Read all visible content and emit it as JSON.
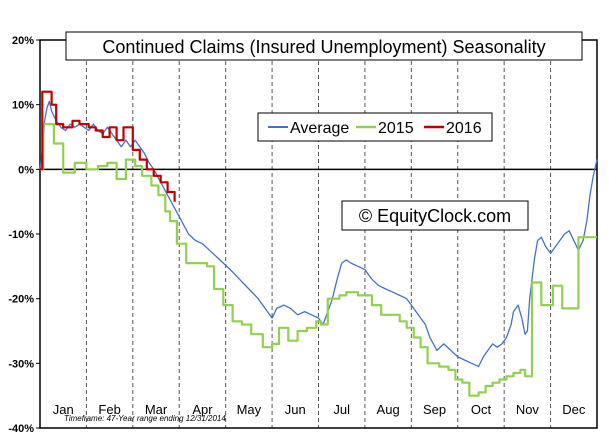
{
  "chart_data": {
    "type": "line",
    "title": "Continued Claims (Insured Unemployment) Seasonality",
    "watermark": "© EquityClock.com",
    "footnote": "Timeframe: 47-Year range ending 12/31/2014",
    "xlabel": "",
    "ylabel": "",
    "x_unit": "month",
    "xlim": [
      0,
      12
    ],
    "ylim": [
      -40,
      20
    ],
    "y_ticks": [
      20,
      10,
      0,
      -10,
      -20,
      -30,
      -40
    ],
    "y_tick_labels": [
      "20%",
      "10%",
      "0%",
      "-10%",
      "-20%",
      "-30%",
      "-40%"
    ],
    "categories": [
      "Jan",
      "Feb",
      "Mar",
      "Apr",
      "May",
      "Jun",
      "Jul",
      "Aug",
      "Sep",
      "Oct",
      "Nov",
      "Dec"
    ],
    "grid": {
      "vertical": true,
      "horizontal": false,
      "vertical_style": "dashed"
    },
    "legend": {
      "position": "top-center",
      "frame": true
    },
    "series": [
      {
        "name": "Average",
        "color": "#4472c4",
        "step": false,
        "points": [
          [
            0.0,
            0.0
          ],
          [
            0.05,
            3.0
          ],
          [
            0.1,
            7.5
          ],
          [
            0.15,
            9.5
          ],
          [
            0.2,
            10.5
          ],
          [
            0.25,
            9.0
          ],
          [
            0.35,
            7.5
          ],
          [
            0.45,
            6.5
          ],
          [
            0.55,
            6.0
          ],
          [
            0.65,
            7.0
          ],
          [
            0.75,
            6.5
          ],
          [
            0.85,
            7.0
          ],
          [
            0.95,
            6.5
          ],
          [
            1.05,
            6.0
          ],
          [
            1.15,
            7.0
          ],
          [
            1.25,
            6.0
          ],
          [
            1.35,
            5.5
          ],
          [
            1.45,
            6.5
          ],
          [
            1.55,
            5.5
          ],
          [
            1.65,
            4.5
          ],
          [
            1.75,
            3.5
          ],
          [
            1.85,
            4.5
          ],
          [
            1.95,
            3.5
          ],
          [
            2.05,
            4.5
          ],
          [
            2.15,
            3.5
          ],
          [
            2.25,
            2.5
          ],
          [
            2.35,
            1.0
          ],
          [
            2.45,
            0.0
          ],
          [
            2.6,
            -2.0
          ],
          [
            2.75,
            -4.0
          ],
          [
            2.9,
            -6.0
          ],
          [
            3.05,
            -8.0
          ],
          [
            3.2,
            -10.0
          ],
          [
            3.35,
            -11.0
          ],
          [
            3.5,
            -11.5
          ],
          [
            3.65,
            -12.5
          ],
          [
            3.8,
            -13.5
          ],
          [
            3.95,
            -14.5
          ],
          [
            4.1,
            -15.5
          ],
          [
            4.3,
            -17.0
          ],
          [
            4.5,
            -18.5
          ],
          [
            4.7,
            -20.0
          ],
          [
            4.85,
            -21.5
          ],
          [
            5.0,
            -23.0
          ],
          [
            5.1,
            -21.5
          ],
          [
            5.25,
            -21.0
          ],
          [
            5.4,
            -21.5
          ],
          [
            5.55,
            -22.5
          ],
          [
            5.7,
            -22.0
          ],
          [
            5.85,
            -22.5
          ],
          [
            6.0,
            -23.0
          ],
          [
            6.1,
            -24.0
          ],
          [
            6.2,
            -22.0
          ],
          [
            6.3,
            -20.0
          ],
          [
            6.4,
            -17.0
          ],
          [
            6.5,
            -14.5
          ],
          [
            6.6,
            -14.0
          ],
          [
            6.7,
            -14.5
          ],
          [
            6.85,
            -15.0
          ],
          [
            7.0,
            -15.5
          ],
          [
            7.15,
            -17.0
          ],
          [
            7.3,
            -18.0
          ],
          [
            7.45,
            -18.5
          ],
          [
            7.6,
            -19.0
          ],
          [
            7.75,
            -19.5
          ],
          [
            7.9,
            -20.0
          ],
          [
            8.0,
            -21.0
          ],
          [
            8.15,
            -22.5
          ],
          [
            8.3,
            -24.0
          ],
          [
            8.4,
            -26.0
          ],
          [
            8.55,
            -28.0
          ],
          [
            8.7,
            -27.0
          ],
          [
            8.85,
            -28.0
          ],
          [
            9.0,
            -29.0
          ],
          [
            9.15,
            -29.5
          ],
          [
            9.3,
            -30.0
          ],
          [
            9.45,
            -30.5
          ],
          [
            9.55,
            -29.0
          ],
          [
            9.65,
            -28.0
          ],
          [
            9.75,
            -27.0
          ],
          [
            9.85,
            -27.5
          ],
          [
            9.95,
            -27.0
          ],
          [
            10.05,
            -26.0
          ],
          [
            10.15,
            -24.0
          ],
          [
            10.2,
            -22.0
          ],
          [
            10.3,
            -21.0
          ],
          [
            10.38,
            -23.0
          ],
          [
            10.45,
            -25.5
          ],
          [
            10.5,
            -25.0
          ],
          [
            10.55,
            -20.0
          ],
          [
            10.65,
            -14.0
          ],
          [
            10.72,
            -11.0
          ],
          [
            10.8,
            -10.5
          ],
          [
            10.9,
            -12.0
          ],
          [
            11.0,
            -13.0
          ],
          [
            11.1,
            -12.0
          ],
          [
            11.2,
            -11.0
          ],
          [
            11.3,
            -10.0
          ],
          [
            11.4,
            -9.5
          ],
          [
            11.5,
            -11.0
          ],
          [
            11.6,
            -12.5
          ],
          [
            11.7,
            -11.0
          ],
          [
            11.78,
            -8.0
          ],
          [
            11.85,
            -4.0
          ],
          [
            11.92,
            -1.0
          ],
          [
            12.0,
            1.5
          ]
        ]
      },
      {
        "name": "2015",
        "color": "#92d050",
        "step": true,
        "points": [
          [
            0.0,
            0.0
          ],
          [
            0.07,
            7.0
          ],
          [
            0.3,
            4.0
          ],
          [
            0.5,
            -0.5
          ],
          [
            0.65,
            -0.5
          ],
          [
            0.75,
            1.0
          ],
          [
            1.0,
            0.0
          ],
          [
            1.25,
            0.5
          ],
          [
            1.45,
            1.0
          ],
          [
            1.65,
            -1.5
          ],
          [
            1.85,
            1.5
          ],
          [
            2.05,
            0.5
          ],
          [
            2.2,
            -1.0
          ],
          [
            2.4,
            -2.5
          ],
          [
            2.55,
            -4.0
          ],
          [
            2.7,
            -6.5
          ],
          [
            2.8,
            -8.0
          ],
          [
            2.95,
            -11.5
          ],
          [
            3.15,
            -14.5
          ],
          [
            3.45,
            -14.5
          ],
          [
            3.6,
            -15.0
          ],
          [
            3.75,
            -18.5
          ],
          [
            3.95,
            -21.0
          ],
          [
            4.15,
            -23.5
          ],
          [
            4.35,
            -24.0
          ],
          [
            4.55,
            -25.5
          ],
          [
            4.8,
            -27.5
          ],
          [
            5.0,
            -27.0
          ],
          [
            5.15,
            -24.5
          ],
          [
            5.35,
            -26.5
          ],
          [
            5.55,
            -25.0
          ],
          [
            5.75,
            -24.5
          ],
          [
            5.95,
            -23.5
          ],
          [
            6.05,
            -24.0
          ],
          [
            6.2,
            -20.0
          ],
          [
            6.45,
            -19.5
          ],
          [
            6.6,
            -19.0
          ],
          [
            6.85,
            -19.5
          ],
          [
            7.0,
            -19.5
          ],
          [
            7.15,
            -21.0
          ],
          [
            7.35,
            -22.5
          ],
          [
            7.75,
            -23.5
          ],
          [
            7.9,
            -24.5
          ],
          [
            8.05,
            -26.0
          ],
          [
            8.2,
            -27.5
          ],
          [
            8.35,
            -30.0
          ],
          [
            8.6,
            -30.5
          ],
          [
            8.8,
            -31.0
          ],
          [
            8.95,
            -32.5
          ],
          [
            9.1,
            -33.0
          ],
          [
            9.25,
            -35.0
          ],
          [
            9.45,
            -34.5
          ],
          [
            9.6,
            -33.5
          ],
          [
            9.75,
            -33.0
          ],
          [
            9.9,
            -32.5
          ],
          [
            10.05,
            -32.0
          ],
          [
            10.2,
            -31.5
          ],
          [
            10.35,
            -31.0
          ],
          [
            10.45,
            -32.0
          ],
          [
            10.6,
            -17.5
          ],
          [
            10.8,
            -21.0
          ],
          [
            10.95,
            -21.0
          ],
          [
            11.05,
            -18.0
          ],
          [
            11.25,
            -21.5
          ],
          [
            11.45,
            -21.5
          ],
          [
            11.6,
            -10.5
          ],
          [
            12.0,
            -10.5
          ]
        ]
      },
      {
        "name": "2016",
        "color": "#c00000",
        "step": true,
        "points": [
          [
            0.0,
            0.0
          ],
          [
            0.05,
            12.0
          ],
          [
            0.25,
            10.0
          ],
          [
            0.35,
            7.0
          ],
          [
            0.5,
            6.5
          ],
          [
            0.7,
            7.5
          ],
          [
            0.85,
            7.0
          ],
          [
            1.05,
            6.5
          ],
          [
            1.2,
            6.0
          ],
          [
            1.35,
            5.0
          ],
          [
            1.5,
            6.5
          ],
          [
            1.65,
            4.5
          ],
          [
            1.8,
            6.5
          ],
          [
            2.0,
            3.0
          ],
          [
            2.15,
            1.5
          ],
          [
            2.3,
            0.0
          ],
          [
            2.45,
            -1.0
          ],
          [
            2.6,
            -2.0
          ],
          [
            2.75,
            -3.5
          ],
          [
            2.9,
            -5.0
          ]
        ]
      }
    ]
  }
}
